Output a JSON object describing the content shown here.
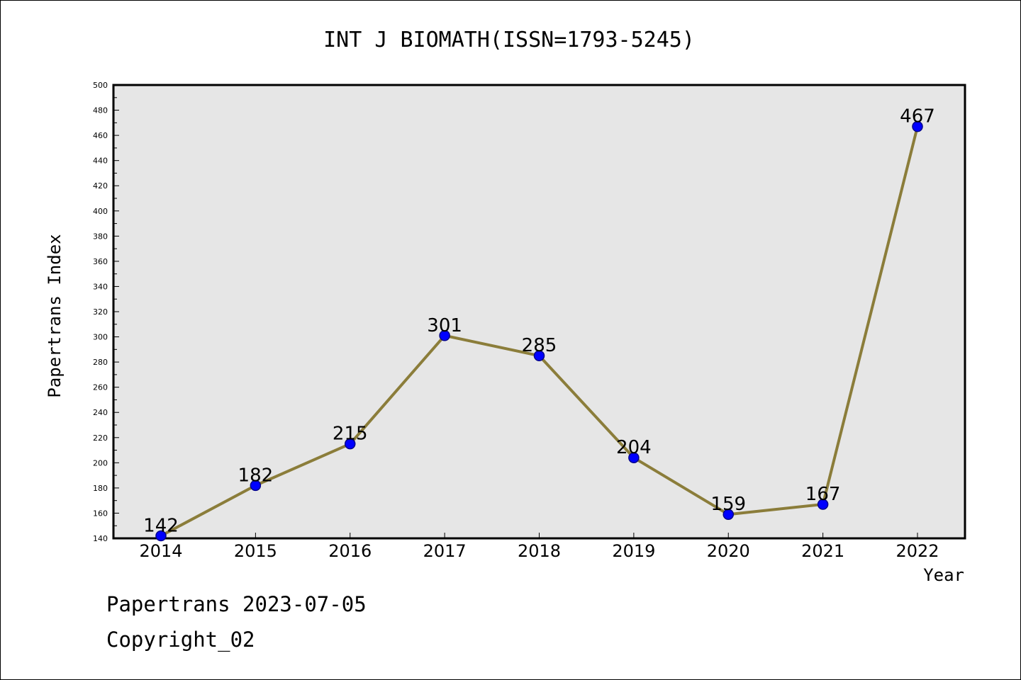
{
  "chart_data": {
    "type": "line",
    "title": "INT J BIOMATH(ISSN=1793-5245)",
    "xlabel": "Year",
    "ylabel": "Papertrans Index",
    "categories": [
      "2014",
      "2015",
      "2016",
      "2017",
      "2018",
      "2019",
      "2020",
      "2021",
      "2022"
    ],
    "series": [
      {
        "values": [
          142,
          182,
          215,
          301,
          285,
          204,
          159,
          167,
          467
        ]
      }
    ],
    "data_labels": [
      "142",
      "182",
      "215",
      "301",
      "285",
      "204",
      "159",
      "167",
      "467"
    ],
    "ylim": [
      140,
      500
    ],
    "yticks": [
      140,
      160,
      180,
      200,
      220,
      240,
      260,
      280,
      300,
      320,
      340,
      360,
      380,
      400,
      420,
      440,
      460,
      480,
      500
    ],
    "grid": false,
    "colors": {
      "line": "#8b7d3a",
      "marker": "#0000ff",
      "plot_bg": "#e6e6e6"
    }
  },
  "footer": {
    "source": "Papertrans 2023-07-05",
    "copyright": "Copyright_02"
  }
}
